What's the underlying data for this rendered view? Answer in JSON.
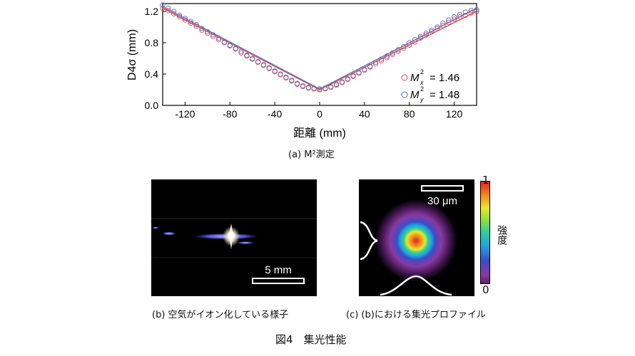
{
  "figure_caption": "図4　集光性能",
  "panel_a": {
    "caption": "(a)  M²測定",
    "chart_data": {
      "type": "scatter",
      "title": "",
      "xlabel": "距離 (mm)",
      "ylabel": "D4σ (mm)",
      "xlim": [
        -140,
        140
      ],
      "ylim": [
        0.0,
        1.3
      ],
      "xticks": [
        -120,
        -80,
        -40,
        0,
        40,
        80,
        120
      ],
      "yticks": [
        0.0,
        0.4,
        0.8,
        1.2
      ],
      "x_tick_labels": [
        "-120",
        "-80",
        "-40",
        "0",
        "40",
        "80",
        "120"
      ],
      "y_tick_labels": [
        "0.0",
        "0.4",
        "0.8",
        "1.2"
      ],
      "legend_position": "bottom-right",
      "series": [
        {
          "name": "Mx² = 1.46",
          "legend_label": "= 1.46",
          "legend_symbol": "M",
          "legend_sub": "x",
          "color": "#e0484f",
          "x": [
            -140,
            -135,
            -130,
            -125,
            -120,
            -115,
            -110,
            -105,
            -100,
            -95,
            -90,
            -85,
            -80,
            -75,
            -70,
            -65,
            -60,
            -55,
            -50,
            -45,
            -40,
            -35,
            -30,
            -25,
            -20,
            -15,
            -10,
            -5,
            0,
            5,
            10,
            15,
            20,
            25,
            30,
            35,
            40,
            45,
            50,
            55,
            60,
            65,
            70,
            75,
            80,
            85,
            90,
            95,
            100,
            105,
            110,
            115,
            120,
            125,
            130,
            135,
            140
          ],
          "y": [
            1.24,
            1.21,
            1.17,
            1.13,
            1.09,
            1.05,
            1.01,
            0.96,
            0.92,
            0.88,
            0.84,
            0.8,
            0.76,
            0.72,
            0.67,
            0.63,
            0.59,
            0.55,
            0.51,
            0.47,
            0.43,
            0.39,
            0.35,
            0.31,
            0.27,
            0.24,
            0.22,
            0.21,
            0.2,
            0.21,
            0.23,
            0.26,
            0.29,
            0.33,
            0.37,
            0.41,
            0.45,
            0.49,
            0.53,
            0.57,
            0.61,
            0.65,
            0.69,
            0.73,
            0.77,
            0.81,
            0.86,
            0.9,
            0.94,
            0.98,
            1.02,
            1.06,
            1.1,
            1.13,
            1.15,
            1.18,
            1.2
          ],
          "fit_x": [
            -140,
            0,
            140
          ],
          "fit_y": [
            1.24,
            0.2,
            1.2
          ]
        },
        {
          "name": "My² = 1.48",
          "legend_label": "= 1.48",
          "legend_symbol": "M",
          "legend_sub": "y",
          "color": "#5a6fb8",
          "x": [
            -140,
            -135,
            -130,
            -125,
            -120,
            -115,
            -110,
            -105,
            -100,
            -95,
            -90,
            -85,
            -80,
            -75,
            -70,
            -65,
            -60,
            -55,
            -50,
            -45,
            -40,
            -35,
            -30,
            -25,
            -20,
            -15,
            -10,
            -5,
            0,
            5,
            10,
            15,
            20,
            25,
            30,
            35,
            40,
            45,
            50,
            55,
            60,
            65,
            70,
            75,
            80,
            85,
            90,
            95,
            100,
            105,
            110,
            115,
            120,
            125,
            130,
            135,
            140
          ],
          "y": [
            1.28,
            1.24,
            1.2,
            1.15,
            1.11,
            1.07,
            1.03,
            0.98,
            0.94,
            0.9,
            0.86,
            0.81,
            0.77,
            0.73,
            0.69,
            0.64,
            0.6,
            0.56,
            0.52,
            0.48,
            0.44,
            0.4,
            0.36,
            0.32,
            0.28,
            0.25,
            0.23,
            0.22,
            0.21,
            0.22,
            0.24,
            0.27,
            0.3,
            0.34,
            0.38,
            0.42,
            0.46,
            0.5,
            0.55,
            0.59,
            0.63,
            0.67,
            0.71,
            0.75,
            0.8,
            0.84,
            0.88,
            0.92,
            0.96,
            1.0,
            1.05,
            1.09,
            1.13,
            1.16,
            1.19,
            1.21,
            1.22
          ],
          "fit_x": [
            -140,
            0,
            140
          ],
          "fit_y": [
            1.26,
            0.21,
            1.24
          ]
        }
      ]
    }
  },
  "panel_b": {
    "caption": "(b)  空気がイオン化している様子",
    "scale_label": "5 mm"
  },
  "panel_c": {
    "caption": "(c)  (b)における集光プロファイル",
    "scale_label": "30 μm",
    "colorbar_max": "1",
    "colorbar_min": "0",
    "colorbar_label": "強度"
  }
}
